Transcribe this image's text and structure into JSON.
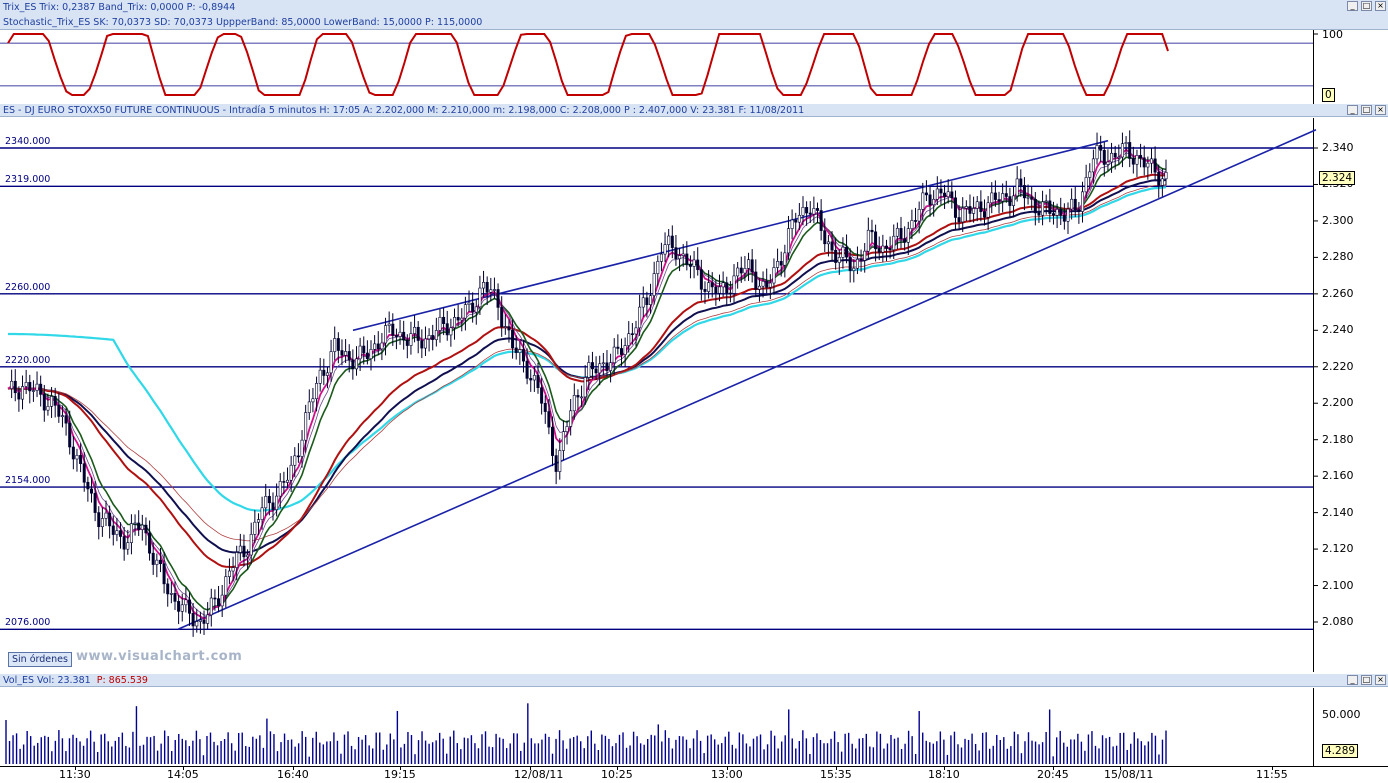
{
  "stoch_panel": {
    "title_trix": "Trix_ES  Trix: 0,2387  Band_Trix: 0,0000  P: -0,8944",
    "title_stoch": "Stochastic_Trix_ES  SK: 70,0373  SD: 70,0373  UppperBand: 85,0000  LowerBand: 15,0000  P: 115,0000",
    "ytick_top": "100",
    "ytick_bottom": "0",
    "badge": "0"
  },
  "price_panel": {
    "title": "ES - DJ EURO STOXX50 FUTURE CONTINUOUS - Intradía 5 minutos  H: 17:05  A: 2.202,000  M: 2.210,000  m: 2.198,000  C: 2.208,000  P : 2.407,000  V: 23.381  F: 11/08/2011",
    "current_price": "2.324",
    "levels": [
      "2340.000",
      "2319.000",
      "2260.000",
      "2220.000",
      "2154.000",
      "2076.000"
    ],
    "yticks": [
      "2.340",
      "2.320",
      "2.300",
      "2.280",
      "2.260",
      "2.240",
      "2.220",
      "2.200",
      "2.180",
      "2.160",
      "2.140",
      "2.120",
      "2.100",
      "2.080"
    ],
    "watermark": "www.visualchart.com",
    "orders_button": "Sin órdenes"
  },
  "volume_panel": {
    "title_name": "Vol_ES  Vol: 23.381",
    "title_p": "P: 865.539",
    "ytick": "50.000",
    "badge": "4.289"
  },
  "xaxis": {
    "ticks": [
      "11:30",
      "14:05",
      "16:40",
      "19:15",
      "12/08/11",
      "10:25",
      "13:00",
      "15:35",
      "18:10",
      "20:45",
      "15/08/11",
      "11:55"
    ]
  },
  "window_buttons": {
    "minimize": "_",
    "maximize": "□",
    "close": "×"
  },
  "colors": {
    "header_bg": "#d8e4f4",
    "level_lines": "#000080",
    "stochastic": "#c00000",
    "ma_magenta": "#d0108a",
    "ma_green": "#1a5a1a",
    "ma_navy": "#101050",
    "ma_red": "#b01010",
    "ma_cyan": "#30d8e8",
    "candles": "#000030",
    "volume": "#000090"
  },
  "chart_data": {
    "type": "candlestick",
    "ylim": [
      2060,
      2352
    ],
    "levels": [
      2340,
      2319,
      2260,
      2220,
      2154,
      2076
    ],
    "close_approx": [
      2205,
      2210,
      2205,
      2200,
      2185,
      2160,
      2140,
      2130,
      2125,
      2135,
      2110,
      2095,
      2085,
      2080,
      2090,
      2110,
      2120,
      2140,
      2150,
      2160,
      2190,
      2215,
      2230,
      2225,
      2225,
      2235,
      2240,
      2235,
      2235,
      2240,
      2245,
      2250,
      2265,
      2255,
      2230,
      2220,
      2200,
      2165,
      2200,
      2215,
      2222,
      2225,
      2240,
      2255,
      2285,
      2285,
      2275,
      2265,
      2260,
      2270,
      2275,
      2260,
      2280,
      2300,
      2310,
      2290,
      2280,
      2275,
      2290,
      2285,
      2290,
      2300,
      2315,
      2315,
      2305,
      2305,
      2310,
      2312,
      2318,
      2310,
      2305,
      2305,
      2305,
      2335,
      2335,
      2338,
      2336,
      2328,
      2324
    ]
  }
}
